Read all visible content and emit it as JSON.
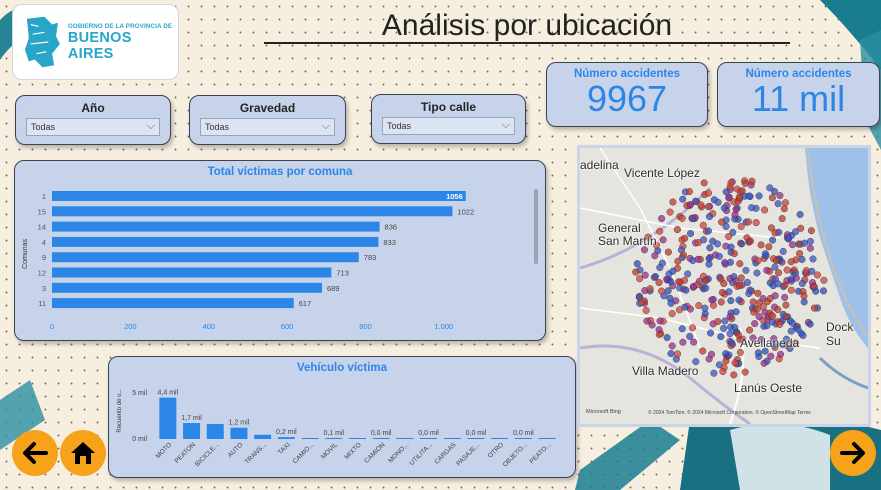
{
  "header": {
    "title": "Análisis por ubicación",
    "logo_line1": "GOBIERNO DE LA PROVINCIA DE",
    "logo_line2": "BUENOS AIRES"
  },
  "slicers": [
    {
      "title": "Año",
      "value": "Todas"
    },
    {
      "title": "Gravedad",
      "value": "Todas"
    },
    {
      "title": "Tipo calle",
      "value": "Todas"
    }
  ],
  "kpis": [
    {
      "title": "Número accidentes",
      "value": "9967"
    },
    {
      "title": "Número accidentes",
      "value": "11 mil"
    }
  ],
  "colors": {
    "bar": "#2b86e8",
    "title_blue": "#2b86e8",
    "panel": "#c7d3ea",
    "nav_button": "#f7a21b",
    "teal_deco": "#1a7d8f"
  },
  "chart_data": [
    {
      "type": "bar",
      "orientation": "horizontal",
      "title": "Total víctimas por comuna",
      "ylabel": "Comunas",
      "categories": [
        "1",
        "15",
        "14",
        "4",
        "9",
        "12",
        "3",
        "11"
      ],
      "values": [
        1056,
        1022,
        836,
        833,
        783,
        713,
        689,
        617
      ],
      "value_labels": [
        "1056",
        "1022",
        "836",
        "833",
        "783",
        "713",
        "689",
        "617"
      ],
      "xlim": [
        0,
        1100
      ],
      "x_ticks": [
        "0",
        "200",
        "400",
        "600",
        "800",
        "1.000"
      ]
    },
    {
      "type": "bar",
      "title": "Vehículo víctima",
      "ylabel": "Recuento de v...",
      "categories": [
        "MOTO",
        "PEATON",
        "BICICLE...",
        "AUTO",
        "TRANS...",
        "TAXI",
        "CAMIO...",
        "MOVIL",
        "MIXTO",
        "CAMION",
        "MONO...",
        "UTILITA...",
        "CARGAS",
        "PASAJE...",
        "OTRO",
        "OBJETO...",
        "PEATO..."
      ],
      "values": [
        4400,
        1700,
        1600,
        1200,
        450,
        200,
        100,
        100,
        50,
        20,
        10,
        10,
        10,
        10,
        10,
        10,
        5
      ],
      "value_labels": [
        "4,4 mil",
        "1,7 mil",
        "",
        "1,2 mil",
        "",
        "0,2 mil",
        "",
        "0,1 mil",
        "",
        "0,0 mil",
        "",
        "0,0 mil",
        "",
        "0,0 mil",
        "",
        "0,0 mil",
        ""
      ],
      "y_ticks": [
        "5 mil",
        "0 mil"
      ],
      "ylim": [
        0,
        5000
      ]
    }
  ],
  "map": {
    "labels": [
      "adelina",
      "Vicente López",
      "General San Martín",
      "Dock Su",
      "Avellaneda",
      "Villa Madero",
      "Lanús Oeste"
    ],
    "attribution": "© 2024 TomTom, © 2024 Microsoft Corporation, © OpenStreetMap  Terms",
    "brand": "Microsoft Bing"
  }
}
